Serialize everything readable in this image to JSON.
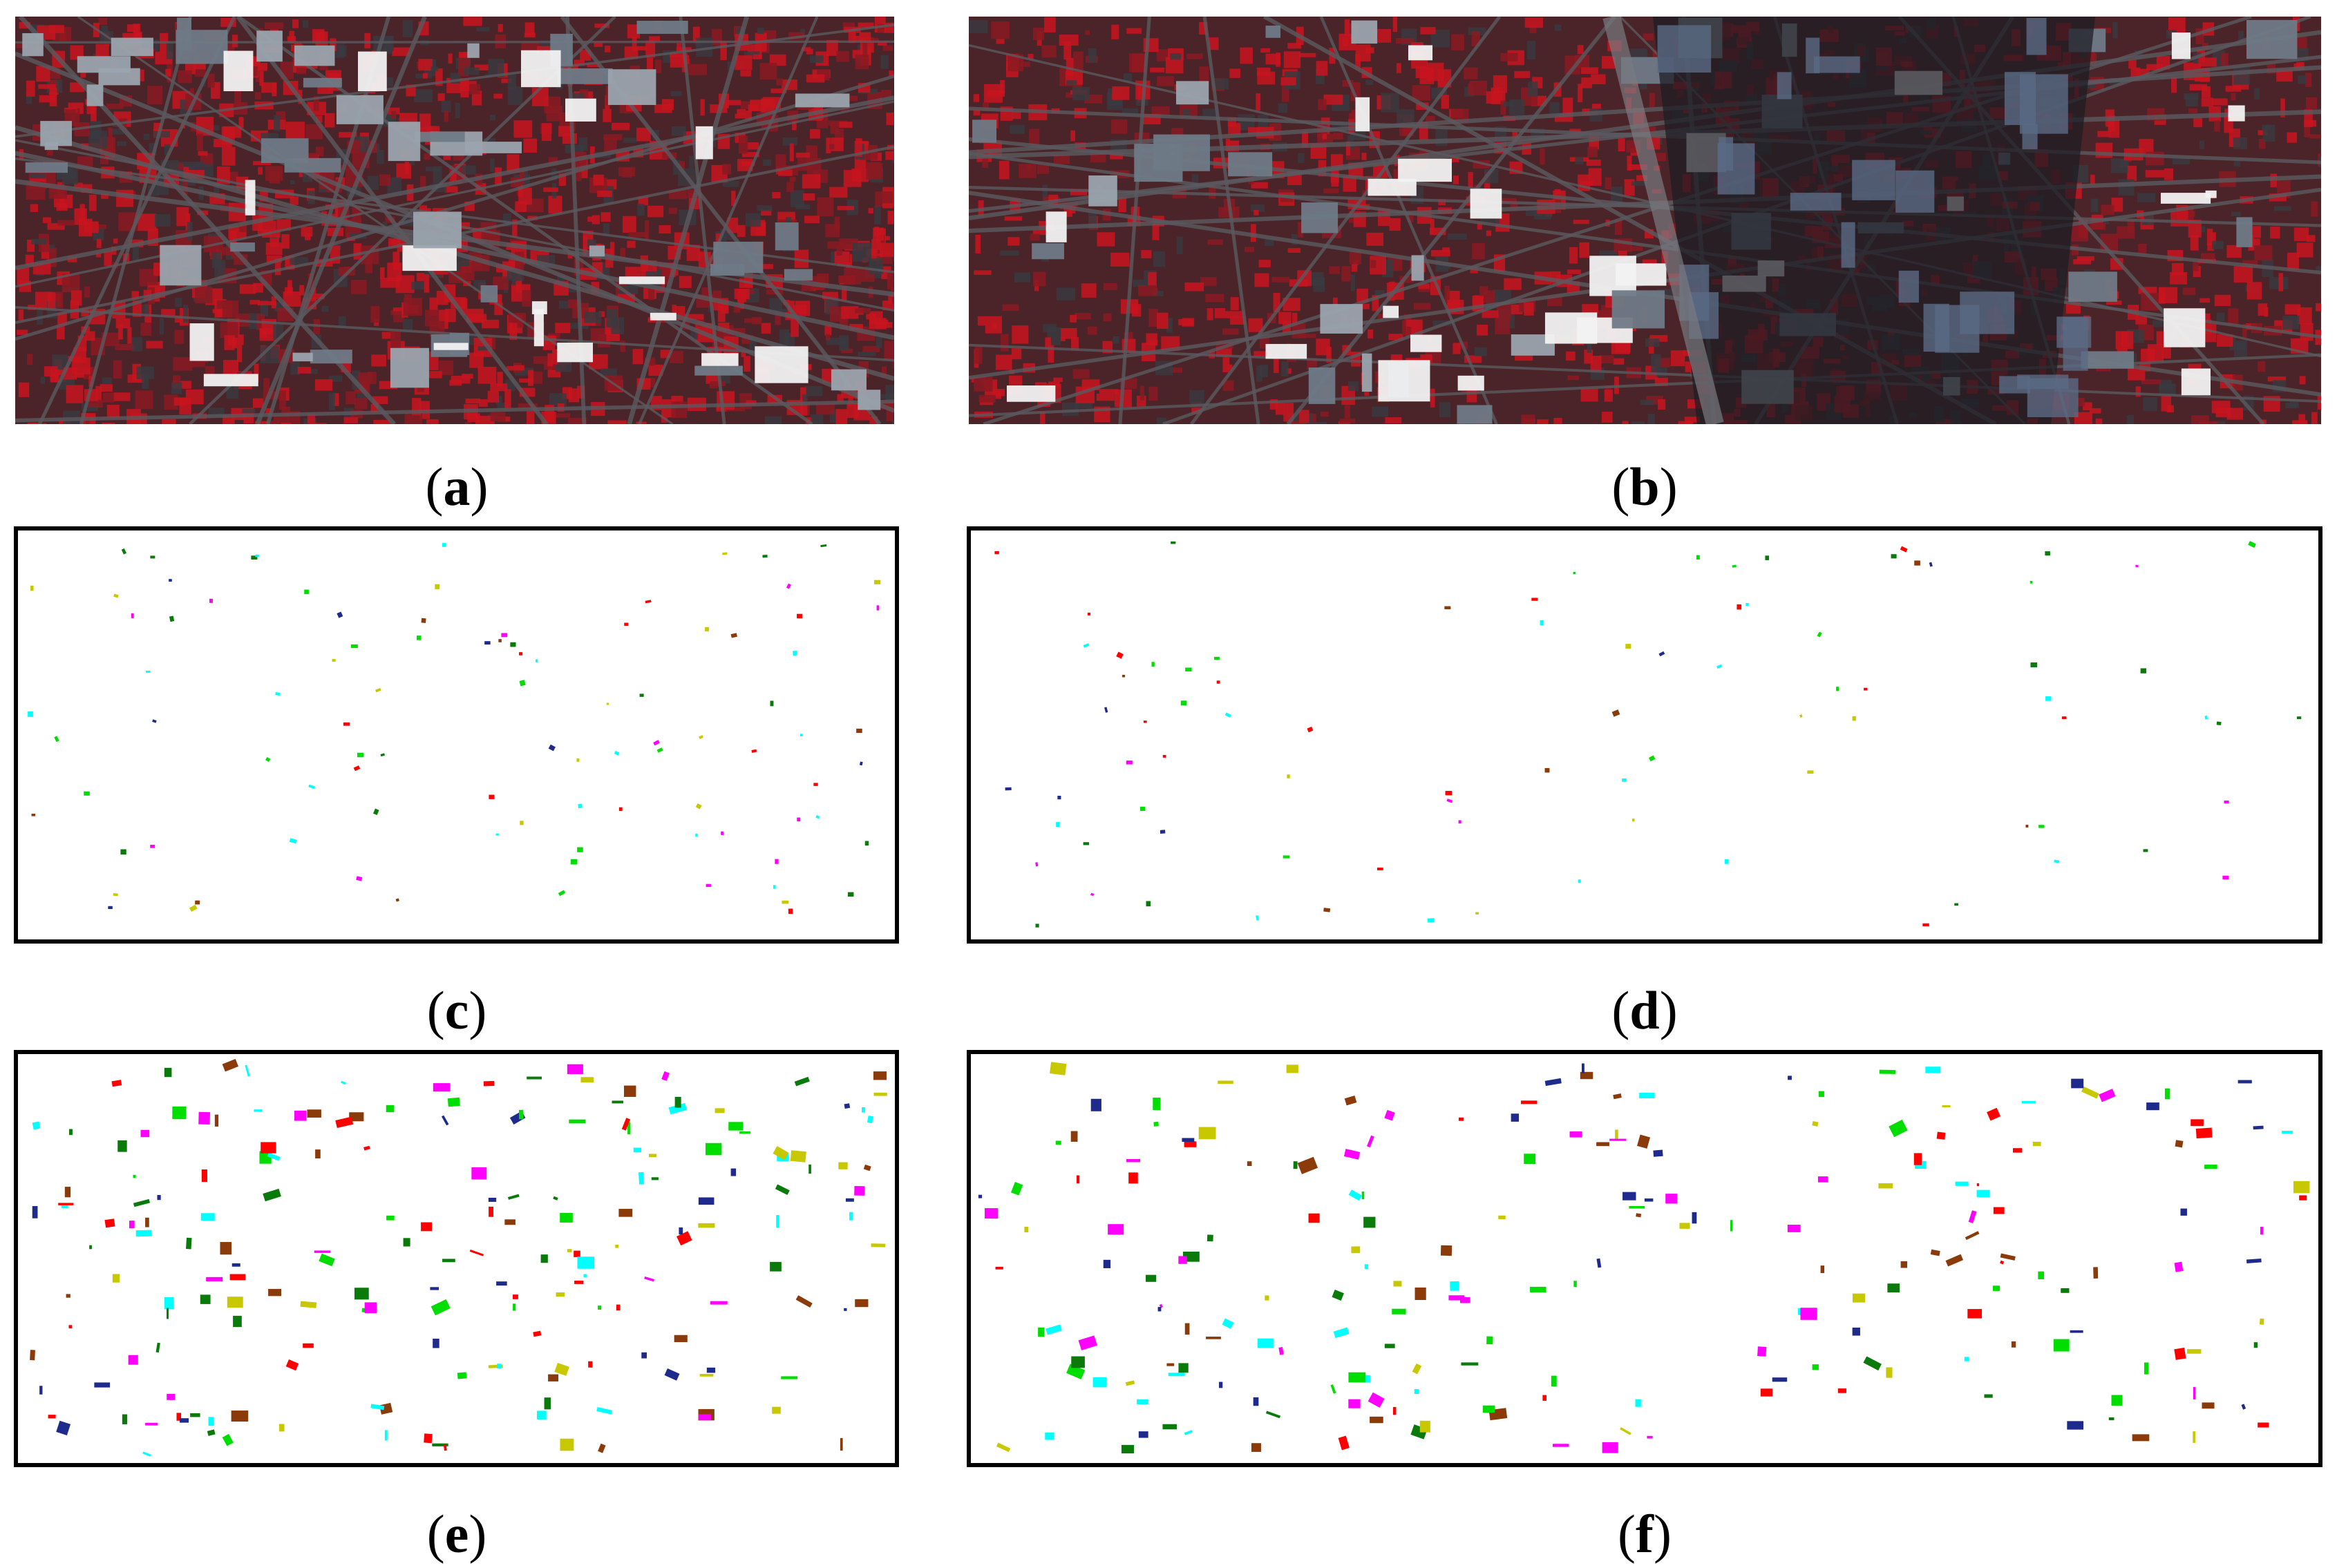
{
  "figure": {
    "panels": [
      {
        "id": "a",
        "label": "a",
        "kind": "false-color aerial image"
      },
      {
        "id": "b",
        "label": "b",
        "kind": "false-color aerial image"
      },
      {
        "id": "c",
        "label": "c",
        "kind": "sparse sample map"
      },
      {
        "id": "d",
        "label": "d",
        "kind": "sparse sample map"
      },
      {
        "id": "e",
        "label": "e",
        "kind": "sample map"
      },
      {
        "id": "f",
        "label": "f",
        "kind": "sample map"
      }
    ],
    "caption_open": "(",
    "caption_close": ")"
  },
  "colors": {
    "vegetation": "#c8141e",
    "urban_dark": "#3a3a40",
    "shadow": "#1c1c22",
    "roof_white": "#f2f2f2",
    "class_colors": [
      "#ff0000",
      "#00dd00",
      "#0a7a0a",
      "#00ffff",
      "#ff00ff",
      "#c8c800",
      "#8b3a0a",
      "#1e2a8c"
    ]
  }
}
